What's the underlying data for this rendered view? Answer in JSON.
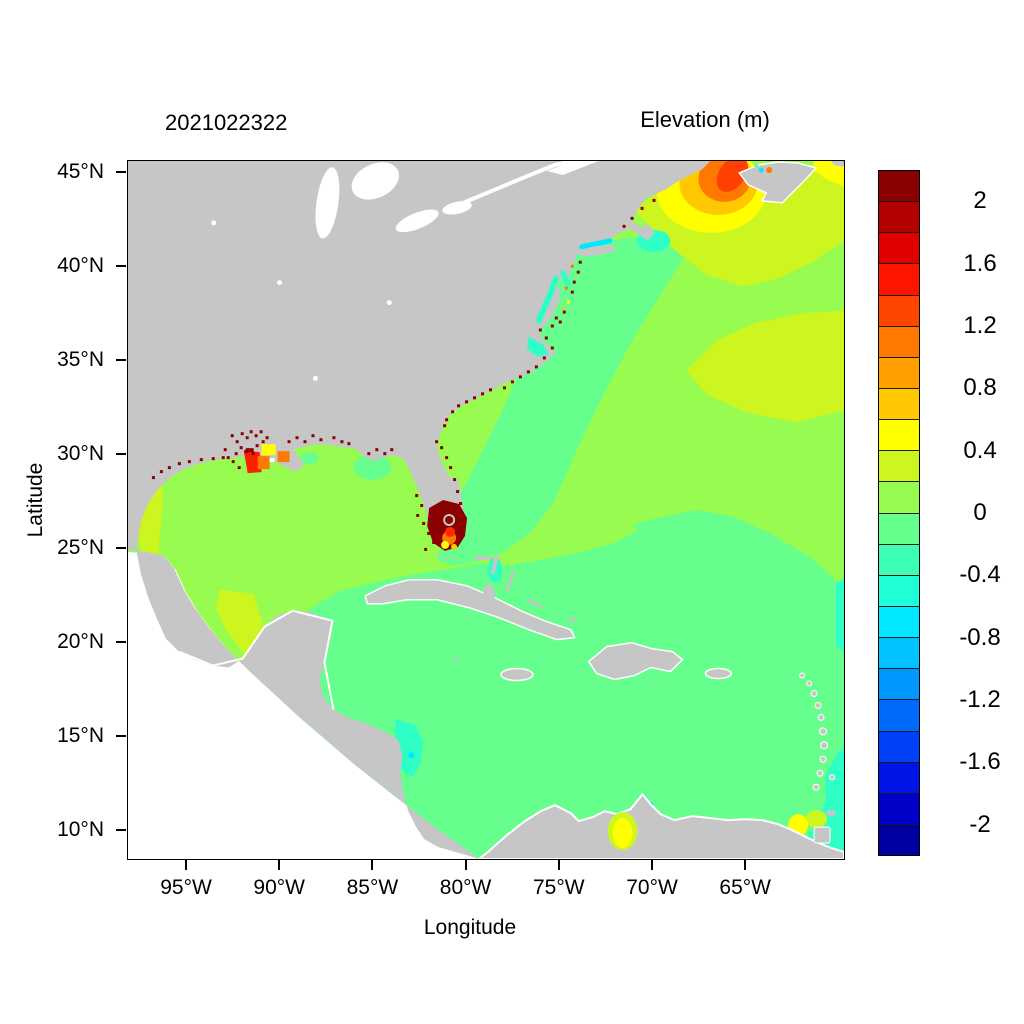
{
  "figure": {
    "run_label": "2021022322",
    "colorbar_title": "Elevation (m)"
  },
  "axes": {
    "x_label": "Longitude",
    "y_label": "Latitude",
    "x_tick_labels": [
      "95°W",
      "90°W",
      "85°W",
      "80°W",
      "75°W",
      "70°W",
      "65°W"
    ],
    "y_tick_labels": [
      "45°N",
      "40°N",
      "35°N",
      "30°N",
      "25°N",
      "20°N",
      "15°N",
      "10°N"
    ]
  },
  "colorbar": {
    "tick_labels": [
      "2",
      "1.6",
      "1.2",
      "0.8",
      "0.4",
      "0",
      "-0.4",
      "-0.8",
      "-1.2",
      "-1.6",
      "-2"
    ],
    "cell_colors_top_to_bottom": [
      "#8B0000",
      "#B40000",
      "#E10000",
      "#FF1400",
      "#FF4600",
      "#FF7800",
      "#FFA000",
      "#FFC800",
      "#FFFF00",
      "#CDF520",
      "#98FB50",
      "#66FE8C",
      "#3CFFB4",
      "#1EFFD8",
      "#00E8FF",
      "#00C2FF",
      "#0098FF",
      "#006AFF",
      "#0040F8",
      "#0014E8",
      "#0000C8",
      "#0000A0"
    ],
    "value_min": -2.2,
    "value_max": 2.2,
    "step": 0.2
  },
  "palette": {
    "land": "#C6C6C6",
    "no_data": "#FFFFFF",
    "ocean_0_to_0.2": "#98FB50",
    "ocean_-0.2_to_0": "#66FE8C",
    "ocean_0.2_to_0.4": "#CDF520",
    "ocean_0.4_to_0.6": "#FFFF00",
    "ocean_0.6_to_0.8": "#FFC800",
    "ocean_0.8_to_1.2": "#FF7800",
    "ocean_1.2_to_1.6": "#FF4000",
    "ocean_above_2": "#8B0000",
    "ocean_-0.6_to_-0.4": "#2EFFC6",
    "ocean_-0.8_to_-0.6": "#00E8FF"
  },
  "chart_data": {
    "type": "heatmap",
    "title": "Elevation (m)",
    "subtitle": "2021022322",
    "xlabel": "Longitude",
    "ylabel": "Latitude",
    "x_range_deg_west": [
      98.2,
      60.5
    ],
    "y_range_deg_north": [
      8.4,
      45.6
    ],
    "x_ticks_deg_west": [
      95,
      90,
      85,
      80,
      75,
      70,
      65
    ],
    "y_ticks_deg_north": [
      45,
      40,
      35,
      30,
      25,
      20,
      15,
      10
    ],
    "colorbar_levels": [
      -2.2,
      -2,
      -1.8,
      -1.6,
      -1.4,
      -1.2,
      -1,
      -0.8,
      -0.6,
      -0.4,
      -0.2,
      0,
      0.2,
      0.4,
      0.6,
      0.8,
      1,
      1.2,
      1.4,
      1.6,
      1.8,
      2,
      2.2
    ],
    "legend_position": "right",
    "grid": false,
    "regions": [
      {
        "name": "Gulf of Mexico central basin",
        "approx_value_m": [
          0,
          0.2
        ]
      },
      {
        "name": "Western Gulf / Texas-Mexico shelf and Bay of Campeche",
        "approx_value_m": [
          0.2,
          0.4
        ]
      },
      {
        "name": "Caribbean Sea and tropical Atlantic",
        "approx_value_m": [
          -0.2,
          0
        ]
      },
      {
        "name": "Open Atlantic north of ~30N",
        "approx_value_m": [
          0,
          0.2
        ]
      },
      {
        "name": "Mid-Atlantic patch near 65W 33N",
        "approx_value_m": [
          0.2,
          0.4
        ]
      },
      {
        "name": "Gulf of Maine rings",
        "approx_value_m": [
          0.4,
          1.0
        ]
      },
      {
        "name": "Bay of Fundy core",
        "approx_value_m": [
          1.2,
          1.6
        ]
      },
      {
        "name": "South Florida / Everglades flooded cells",
        "approx_value_m": [
          2.0,
          2.2
        ]
      },
      {
        "name": "Mississippi delta coastal cells",
        "approx_value_m": [
          0.6,
          2.2
        ]
      },
      {
        "name": "Coastal speckles (TX to New England)",
        "approx_value_m": [
          2.0,
          2.2
        ]
      },
      {
        "name": "Long Island Sound",
        "approx_value_m": [
          -0.8,
          -0.6
        ]
      },
      {
        "name": "Chesapeake and Delaware Bays",
        "approx_value_m": [
          -0.6,
          -0.4
        ]
      },
      {
        "name": "Nantucket shoals",
        "approx_value_m": [
          -0.6,
          -0.4
        ]
      },
      {
        "name": "Gulf of Honduras",
        "approx_value_m": [
          -0.6,
          -0.4
        ]
      },
      {
        "name": "Lake Maracaibo",
        "approx_value_m": [
          0.4,
          0.6
        ]
      },
      {
        "name": "Eastern boundary near Lesser Antilles",
        "approx_value_m": [
          -0.6,
          -0.4
        ]
      }
    ]
  }
}
